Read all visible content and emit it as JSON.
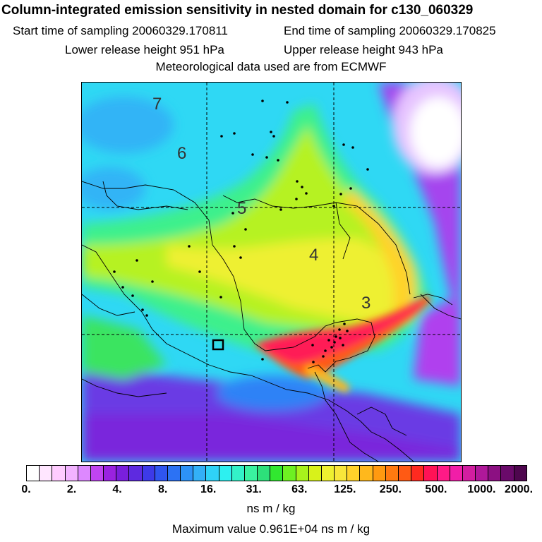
{
  "title": "Column-integrated emission sensitivity in nested domain for c130_060329",
  "header": {
    "start_time": "Start time of sampling 20060329.170811",
    "end_time": "End time of sampling 20060329.170825",
    "lower_release": "Lower release height  951 hPa",
    "upper_release": "Upper release height  943 hPa",
    "met_data": "Meteorological data used are from ECMWF"
  },
  "map": {
    "day_labels": [
      "7",
      "6",
      "5",
      "4",
      "3"
    ],
    "colors": {
      "land_boundary": "#000000",
      "grid": "#000000",
      "point_marker": "#000000"
    }
  },
  "colorbar": {
    "tick_labels": [
      "0.",
      "2.",
      "4.",
      "8.",
      "16.",
      "31.",
      "63.",
      "125.",
      "250.",
      "500.",
      "1000.",
      "2000."
    ],
    "segment_colors": [
      "#ffffff",
      "#ffe6ff",
      "#ffccff",
      "#f2b3ff",
      "#dd88ff",
      "#c044f0",
      "#9a22e0",
      "#7a1fdc",
      "#5e2ae0",
      "#3d3ae8",
      "#2f55f0",
      "#2c72f4",
      "#2d92f7",
      "#33b0f7",
      "#2fd3f7",
      "#2df0f0",
      "#33f2c8",
      "#3af2a0",
      "#2de07a",
      "#31e830",
      "#6ef022",
      "#a8f21c",
      "#d8f21a",
      "#eef030",
      "#f8e63a",
      "#ffd22a",
      "#ffb81c",
      "#ff9a10",
      "#ff7a10",
      "#ff5a14",
      "#ff2a20",
      "#ff1256",
      "#ff1a86",
      "#f11ea8",
      "#d21ea0",
      "#b0189a",
      "#8c1082",
      "#6a0a6a",
      "#4e064e"
    ],
    "units": "ns m / kg",
    "max_value": "Maximum value  0.961E+04 ns m / kg"
  }
}
